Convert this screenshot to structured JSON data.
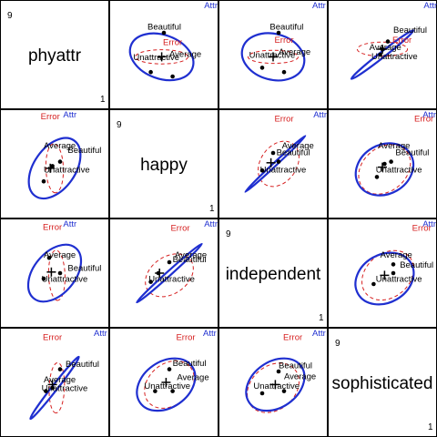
{
  "chart_data": {
    "type": "scatter",
    "variables": [
      "phyattr",
      "happy",
      "independent",
      "sophisticated"
    ],
    "range_min": "9",
    "range_max": "1",
    "group_labels": [
      "Beautiful",
      "Average",
      "Unattractive"
    ],
    "hypothesis_label": "Attr",
    "error_label": "Error",
    "colors": {
      "hypothesis": "#1f2fd0",
      "error": "#d62020",
      "points": "#000000",
      "frame": "#000000"
    },
    "panels": [
      {
        "row": 0,
        "col": 1,
        "x": "happy",
        "y": "phyattr",
        "points": [
          [
            0.5,
            0.3
          ],
          [
            0.38,
            0.66
          ],
          [
            0.58,
            0.7
          ]
        ],
        "grand_mean": [
          0.48,
          0.52
        ],
        "hyp": {
          "center": [
            0.48,
            0.52
          ],
          "a": 0.6,
          "b": 0.4,
          "rot": 20
        },
        "err": {
          "center": [
            0.48,
            0.52
          ],
          "a": 0.48,
          "b": 0.13,
          "rot": 0
        },
        "labels": {
          "Beautiful": [
            0.35,
            0.27
          ],
          "Average": [
            0.55,
            0.52
          ],
          "Unattractive": [
            0.22,
            0.55
          ],
          "Attr": [
            0.93,
            0.04
          ],
          "Error": [
            0.58,
            0.38
          ]
        }
      },
      {
        "row": 0,
        "col": 2,
        "x": "independent",
        "y": "phyattr",
        "points": [
          [
            0.55,
            0.3
          ],
          [
            0.4,
            0.62
          ],
          [
            0.6,
            0.66
          ]
        ],
        "grand_mean": [
          0.5,
          0.52
        ],
        "hyp": {
          "center": [
            0.5,
            0.52
          ],
          "a": 0.58,
          "b": 0.42,
          "rot": 15
        },
        "err": {
          "center": [
            0.5,
            0.52
          ],
          "a": 0.46,
          "b": 0.12,
          "rot": 0
        },
        "labels": {
          "Beautiful": [
            0.47,
            0.27
          ],
          "Average": [
            0.55,
            0.5
          ],
          "Unattractive": [
            0.28,
            0.53
          ],
          "Attr": [
            0.92,
            0.04
          ],
          "Error": [
            0.6,
            0.36
          ]
        }
      },
      {
        "row": 0,
        "col": 3,
        "x": "sophisticated",
        "y": "phyattr",
        "points": [
          [
            0.55,
            0.38
          ],
          [
            0.5,
            0.45
          ],
          [
            0.48,
            0.5
          ]
        ],
        "grand_mean": [
          0.5,
          0.45
        ],
        "hyp": {
          "center": [
            0.5,
            0.5
          ],
          "a": 0.72,
          "b": 0.05,
          "rot": -38
        },
        "err": {
          "center": [
            0.5,
            0.45
          ],
          "a": 0.46,
          "b": 0.13,
          "rot": 0
        },
        "labels": {
          "Beautiful": [
            0.6,
            0.3
          ],
          "Average": [
            0.38,
            0.46
          ],
          "Unattractive": [
            0.4,
            0.54
          ],
          "Attr": [
            0.94,
            0.04
          ],
          "Error": [
            0.68,
            0.36
          ]
        }
      },
      {
        "row": 1,
        "col": 0,
        "x": "phyattr",
        "y": "happy",
        "points": [
          [
            0.55,
            0.48
          ],
          [
            0.48,
            0.52
          ],
          [
            0.4,
            0.66
          ]
        ],
        "grand_mean": [
          0.46,
          0.54
        ],
        "hyp": {
          "center": [
            0.5,
            0.54
          ],
          "a": 0.62,
          "b": 0.38,
          "rot": -55
        },
        "err": {
          "center": [
            0.5,
            0.54
          ],
          "a": 0.45,
          "b": 0.16,
          "rot": 88
        },
        "labels": {
          "Beautiful": [
            0.62,
            0.4
          ],
          "Average": [
            0.4,
            0.36
          ],
          "Unattractive": [
            0.4,
            0.58
          ],
          "Attr": [
            0.64,
            0.04
          ],
          "Error": [
            0.46,
            0.06
          ]
        }
      },
      {
        "row": 1,
        "col": 2,
        "x": "independent",
        "y": "happy",
        "points": [
          [
            0.5,
            0.4
          ],
          [
            0.55,
            0.48
          ],
          [
            0.4,
            0.56
          ]
        ],
        "grand_mean": [
          0.48,
          0.49
        ],
        "hyp": {
          "center": [
            0.52,
            0.5
          ],
          "a": 0.75,
          "b": 0.03,
          "rot": -43
        },
        "err": {
          "center": [
            0.55,
            0.5
          ],
          "a": 0.45,
          "b": 0.33,
          "rot": -55
        },
        "labels": {
          "Beautiful": [
            0.53,
            0.42
          ],
          "Average": [
            0.58,
            0.36
          ],
          "Unattractive": [
            0.38,
            0.58
          ],
          "Attr": [
            0.93,
            0.04
          ],
          "Error": [
            0.6,
            0.08
          ]
        }
      },
      {
        "row": 1,
        "col": 3,
        "x": "sophisticated",
        "y": "happy",
        "points": [
          [
            0.58,
            0.48
          ],
          [
            0.52,
            0.5
          ],
          [
            0.45,
            0.62
          ]
        ],
        "grand_mean": [
          0.5,
          0.53
        ],
        "hyp": {
          "center": [
            0.52,
            0.55
          ],
          "a": 0.55,
          "b": 0.45,
          "rot": -30
        },
        "err": {
          "center": [
            0.52,
            0.55
          ],
          "a": 0.52,
          "b": 0.4,
          "rot": -40
        },
        "labels": {
          "Beautiful": [
            0.62,
            0.42
          ],
          "Average": [
            0.46,
            0.36
          ],
          "Unattractive": [
            0.44,
            0.58
          ],
          "Attr": [
            0.93,
            0.04
          ],
          "Error": [
            0.88,
            0.08
          ]
        }
      },
      {
        "row": 2,
        "col": 0,
        "x": "phyattr",
        "y": "independent",
        "points": [
          [
            0.55,
            0.5
          ],
          [
            0.45,
            0.36
          ],
          [
            0.4,
            0.55
          ]
        ],
        "grand_mean": [
          0.47,
          0.49
        ],
        "hyp": {
          "center": [
            0.5,
            0.5
          ],
          "a": 0.6,
          "b": 0.38,
          "rot": -50
        },
        "err": {
          "center": [
            0.52,
            0.52
          ],
          "a": 0.46,
          "b": 0.15,
          "rot": 88
        },
        "labels": {
          "Beautiful": [
            0.62,
            0.48
          ],
          "Average": [
            0.4,
            0.36
          ],
          "Unattractive": [
            0.38,
            0.58
          ],
          "Attr": [
            0.64,
            0.04
          ],
          "Error": [
            0.48,
            0.07
          ]
        }
      },
      {
        "row": 2,
        "col": 1,
        "x": "happy",
        "y": "independent",
        "points": [
          [
            0.55,
            0.4
          ],
          [
            0.45,
            0.5
          ],
          [
            0.38,
            0.58
          ]
        ],
        "grand_mean": [
          0.46,
          0.5
        ],
        "hyp": {
          "center": [
            0.55,
            0.5
          ],
          "a": 0.8,
          "b": 0.04,
          "rot": -42
        },
        "err": {
          "center": [
            0.55,
            0.52
          ],
          "a": 0.48,
          "b": 0.34,
          "rot": -35
        },
        "labels": {
          "Beautiful": [
            0.58,
            0.4
          ],
          "Average": [
            0.6,
            0.36
          ],
          "Unattractive": [
            0.36,
            0.58
          ],
          "Attr": [
            0.93,
            0.04
          ],
          "Error": [
            0.65,
            0.08
          ]
        }
      },
      {
        "row": 2,
        "col": 3,
        "x": "sophisticated",
        "y": "independent",
        "points": [
          [
            0.6,
            0.42
          ],
          [
            0.6,
            0.5
          ],
          [
            0.42,
            0.6
          ]
        ],
        "grand_mean": [
          0.52,
          0.52
        ],
        "hyp": {
          "center": [
            0.52,
            0.55
          ],
          "a": 0.56,
          "b": 0.44,
          "rot": -30
        },
        "err": {
          "center": [
            0.55,
            0.52
          ],
          "a": 0.52,
          "b": 0.4,
          "rot": -40
        },
        "labels": {
          "Beautiful": [
            0.66,
            0.45
          ],
          "Average": [
            0.48,
            0.36
          ],
          "Unattractive": [
            0.44,
            0.58
          ],
          "Attr": [
            0.93,
            0.04
          ],
          "Error": [
            0.86,
            0.08
          ]
        }
      },
      {
        "row": 3,
        "col": 0,
        "x": "phyattr",
        "y": "sophisticated",
        "points": [
          [
            0.55,
            0.38
          ],
          [
            0.48,
            0.55
          ],
          [
            0.42,
            0.58
          ]
        ],
        "grand_mean": [
          0.48,
          0.52
        ],
        "hyp": {
          "center": [
            0.5,
            0.55
          ],
          "a": 0.72,
          "b": 0.05,
          "rot": -52
        },
        "err": {
          "center": [
            0.52,
            0.55
          ],
          "a": 0.46,
          "b": 0.14,
          "rot": 92
        },
        "labels": {
          "Beautiful": [
            0.6,
            0.36
          ],
          "Average": [
            0.4,
            0.5
          ],
          "Unattractive": [
            0.38,
            0.58
          ],
          "Attr": [
            0.92,
            0.04
          ],
          "Error": [
            0.48,
            0.08
          ]
        }
      },
      {
        "row": 3,
        "col": 1,
        "x": "happy",
        "y": "sophisticated",
        "points": [
          [
            0.55,
            0.38
          ],
          [
            0.42,
            0.58
          ],
          [
            0.58,
            0.58
          ]
        ],
        "grand_mean": [
          0.52,
          0.5
        ],
        "hyp": {
          "center": [
            0.52,
            0.52
          ],
          "a": 0.58,
          "b": 0.42,
          "rot": -35
        },
        "err": {
          "center": [
            0.55,
            0.52
          ],
          "a": 0.5,
          "b": 0.38,
          "rot": -40
        },
        "labels": {
          "Beautiful": [
            0.58,
            0.35
          ],
          "Average": [
            0.62,
            0.48
          ],
          "Unattractive": [
            0.32,
            0.56
          ],
          "Attr": [
            0.92,
            0.04
          ],
          "Error": [
            0.7,
            0.08
          ]
        }
      },
      {
        "row": 3,
        "col": 2,
        "x": "independent",
        "y": "sophisticated",
        "points": [
          [
            0.55,
            0.4
          ],
          [
            0.4,
            0.6
          ],
          [
            0.6,
            0.58
          ]
        ],
        "grand_mean": [
          0.52,
          0.52
        ],
        "hyp": {
          "center": [
            0.52,
            0.52
          ],
          "a": 0.58,
          "b": 0.42,
          "rot": -35
        },
        "err": {
          "center": [
            0.5,
            0.55
          ],
          "a": 0.52,
          "b": 0.4,
          "rot": -40
        },
        "labels": {
          "Beautiful": [
            0.55,
            0.37
          ],
          "Average": [
            0.6,
            0.47
          ],
          "Unattractive": [
            0.32,
            0.56
          ],
          "Attr": [
            0.92,
            0.04
          ],
          "Error": [
            0.68,
            0.08
          ]
        }
      }
    ]
  }
}
